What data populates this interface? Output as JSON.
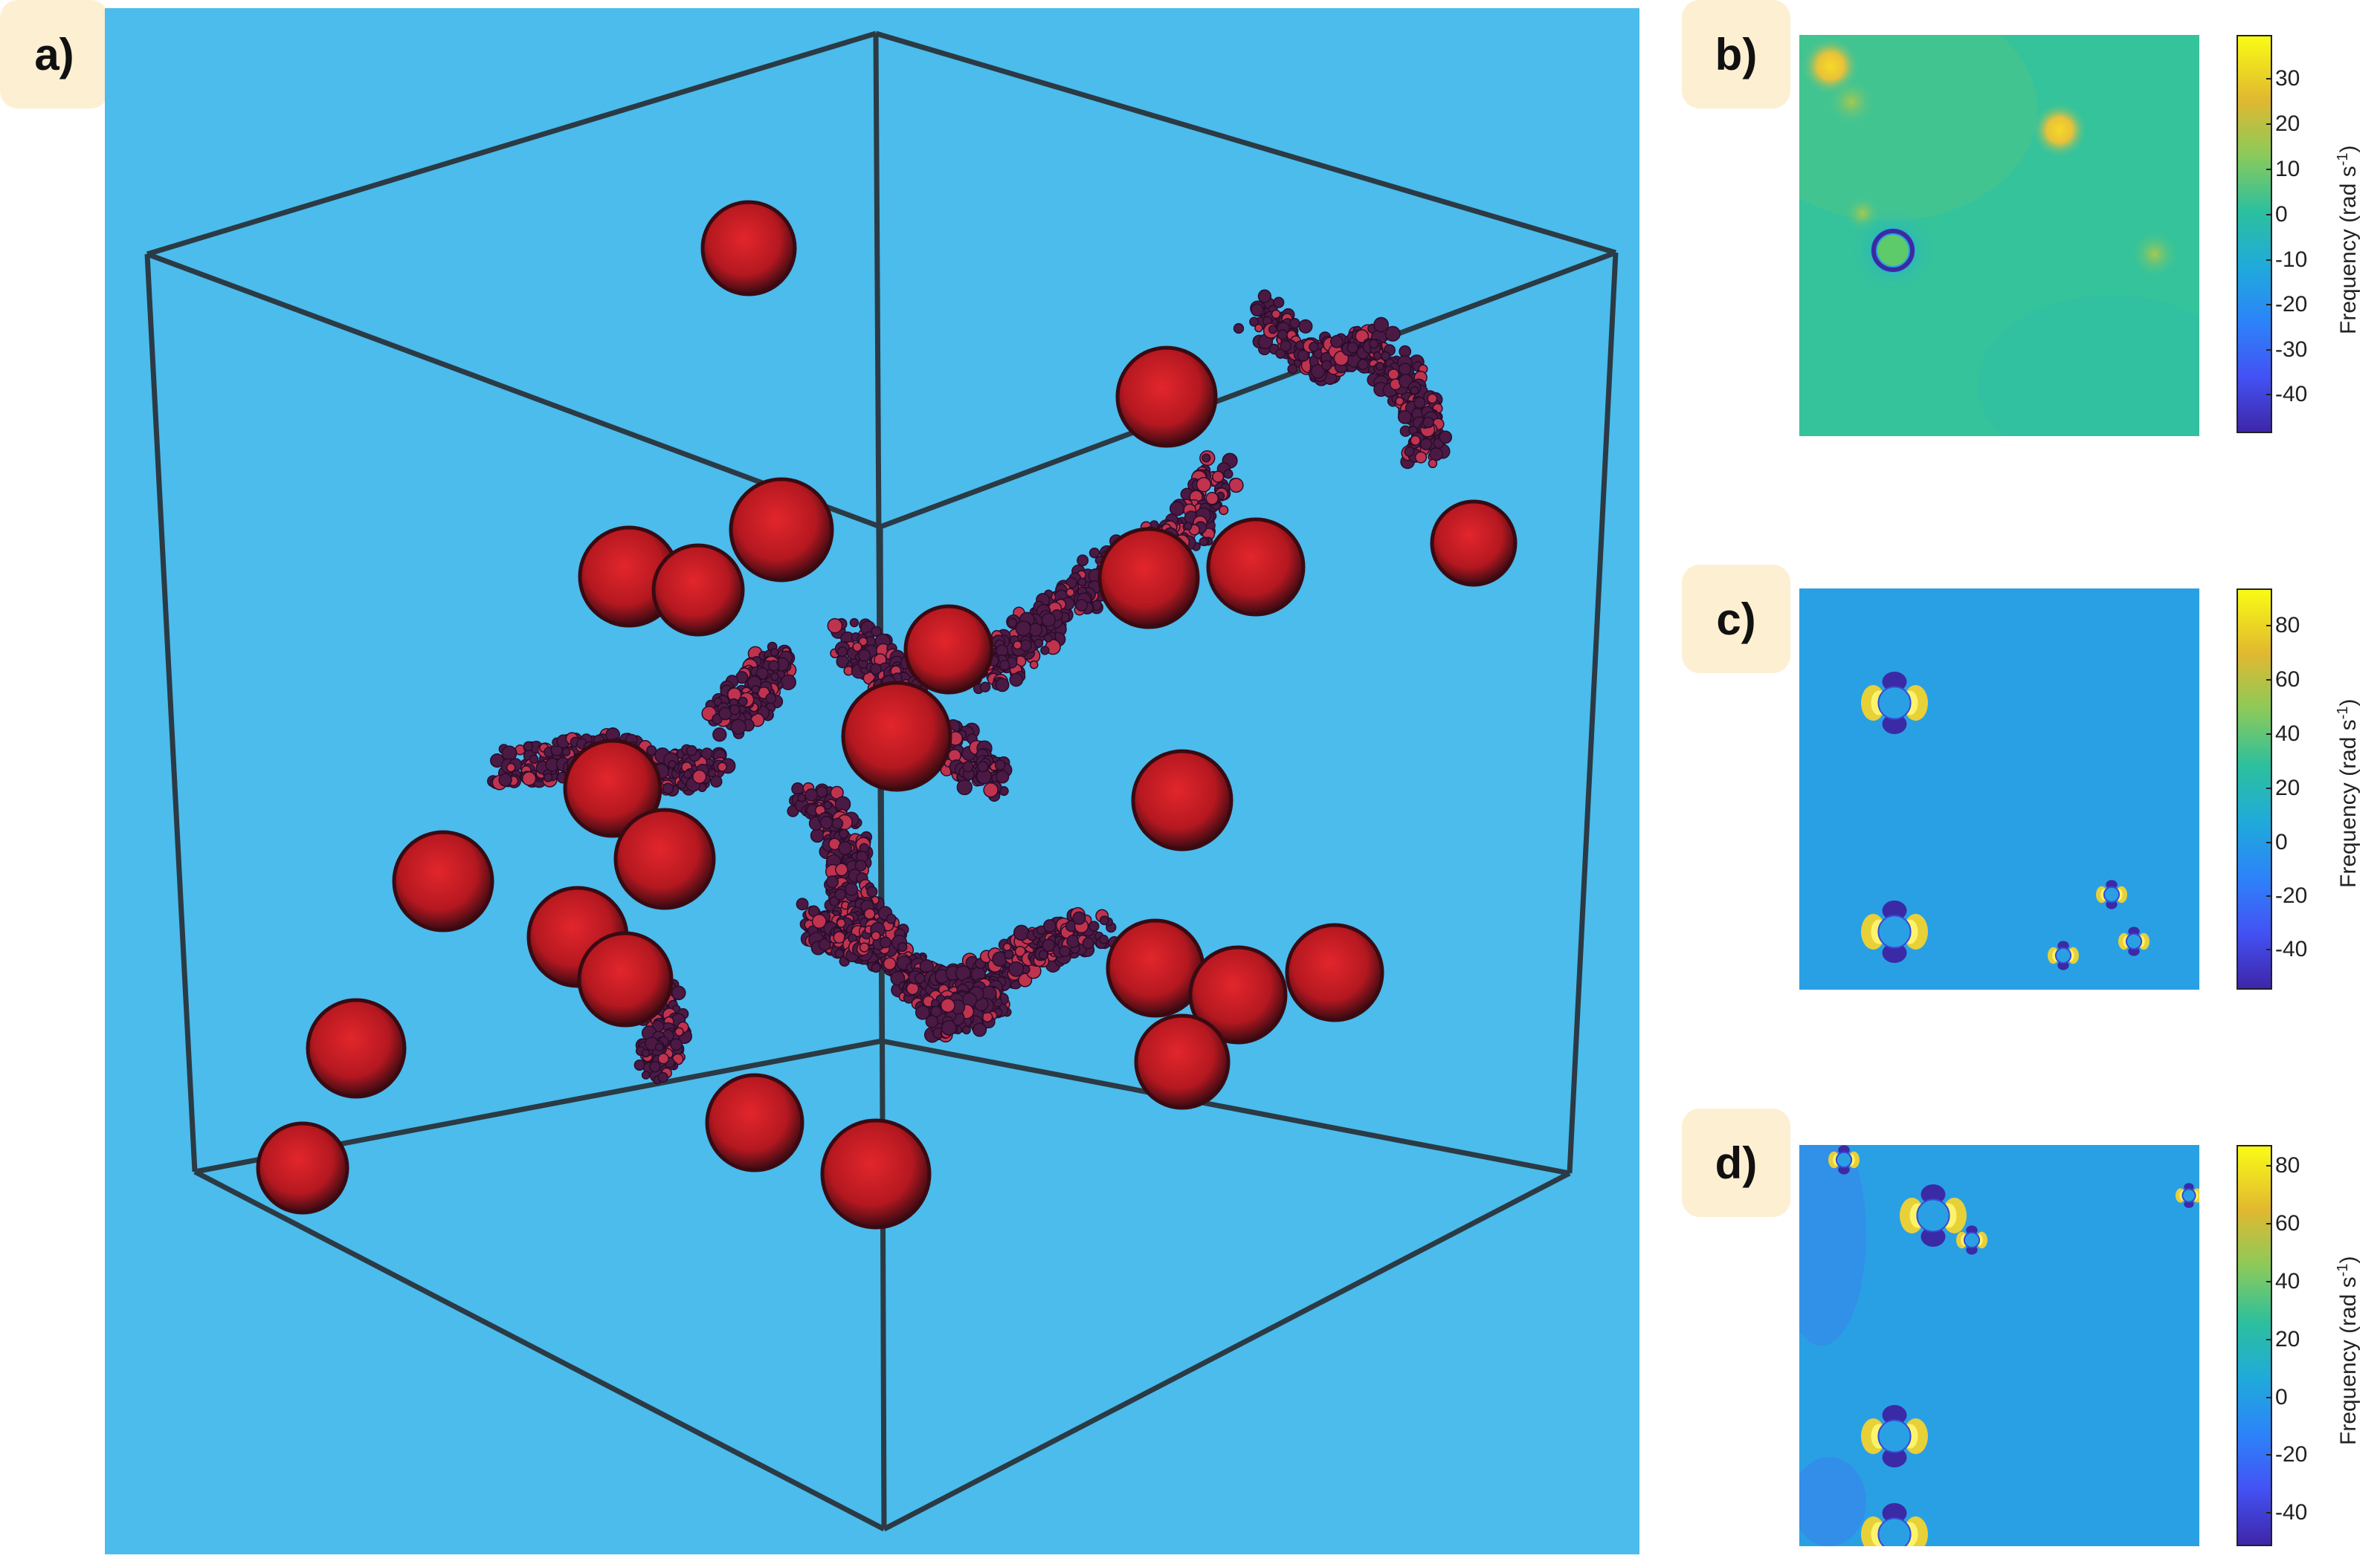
{
  "panels": {
    "a": {
      "label": "a)"
    },
    "b": {
      "label": "b)",
      "colorbar": {
        "label_main": "Frequency (rad s",
        "label_exp": "-1",
        "label_close": ")",
        "ticks": [
          "30",
          "20",
          "10",
          "0",
          "-10",
          "-20",
          "-30",
          "-40"
        ]
      }
    },
    "c": {
      "label": "c)",
      "colorbar": {
        "label_main": "Frequency (rad s",
        "label_exp": "-1",
        "label_close": ")",
        "ticks": [
          "80",
          "60",
          "40",
          "20",
          "0",
          "-20",
          "-40"
        ]
      }
    },
    "d": {
      "label": "d)",
      "colorbar": {
        "label_main": "Frequency (rad s",
        "label_exp": "-1",
        "label_close": ")",
        "ticks": [
          "80",
          "60",
          "40",
          "20",
          "0",
          "-20",
          "-40"
        ]
      }
    }
  },
  "colors": {
    "background_3d": "#4bbcec",
    "sphere": "#c41a22",
    "cluster": "#5a1f4e",
    "frame": "#2b3a44",
    "map_b_base": "#35c39b",
    "map_cd_base": "#2aa0e4",
    "label_box": "#fdefd2"
  },
  "colormap": "parula"
}
